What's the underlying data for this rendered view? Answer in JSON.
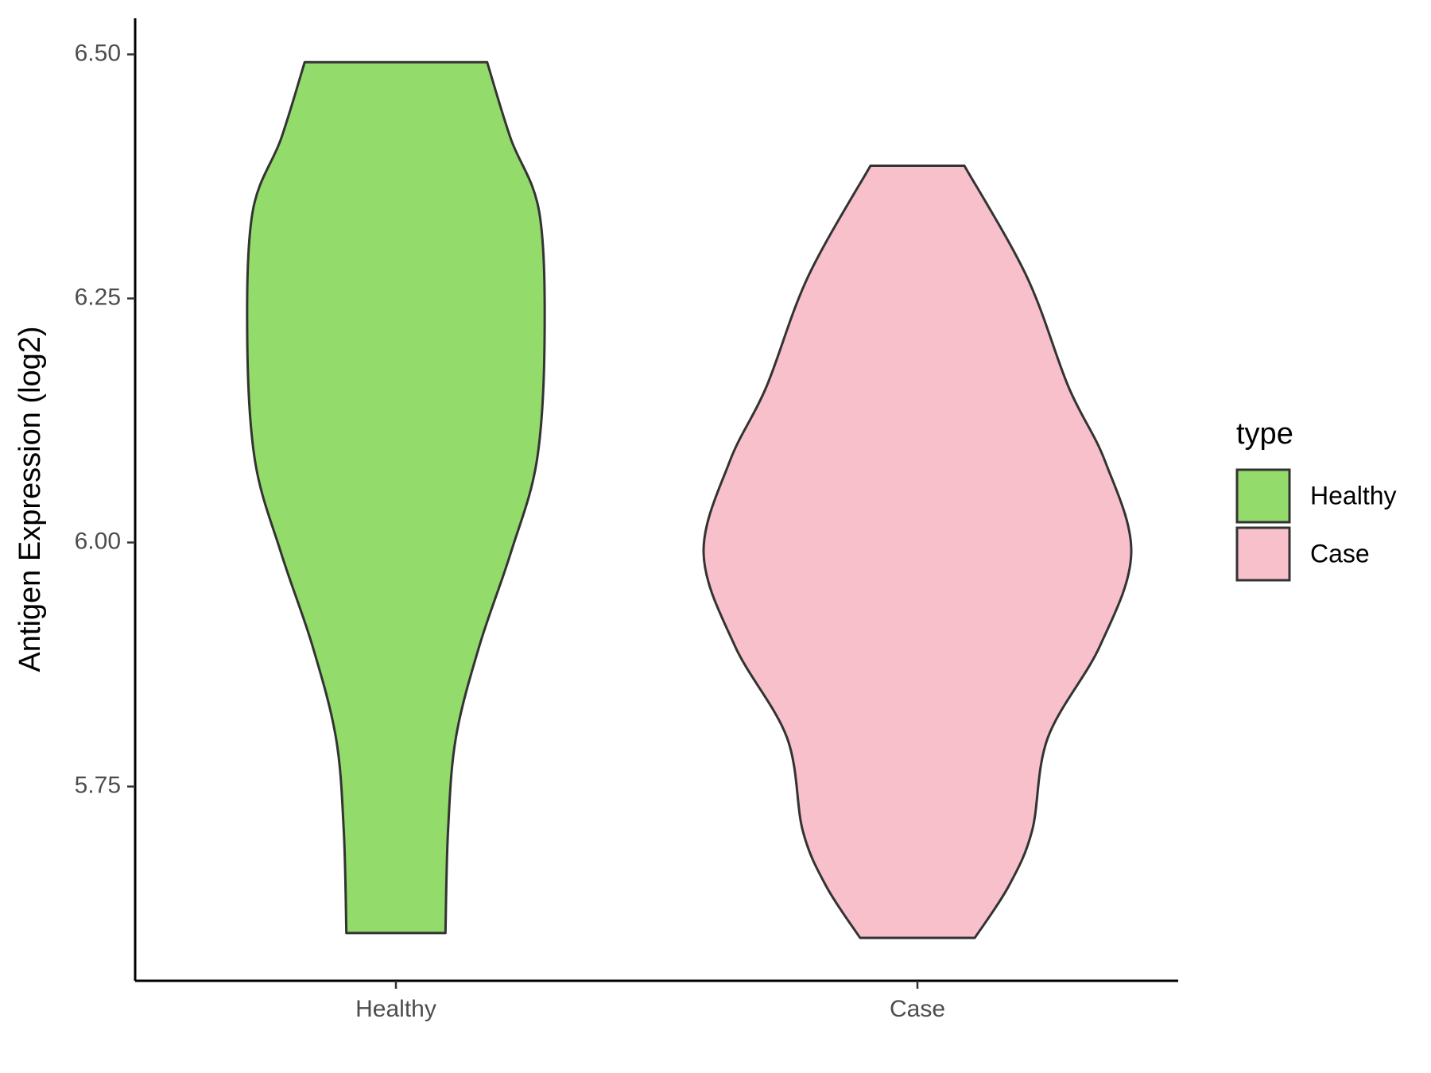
{
  "chart_data": {
    "type": "violin",
    "y_label": "Antigen Expression (log2)",
    "categories": [
      "Healthy",
      "Case"
    ],
    "legend_title": "type",
    "legend_position": "right",
    "series": [
      {
        "name": "Healthy",
        "color": "#93db6a",
        "y": [
          6.492,
          6.414,
          6.338,
          6.206,
          6.083,
          5.989,
          5.894,
          5.8,
          5.705,
          5.6
        ],
        "widths": [
          0.35,
          0.44,
          0.55,
          0.57,
          0.54,
          0.44,
          0.32,
          0.23,
          0.2,
          0.19
        ]
      },
      {
        "name": "Case",
        "color": "#f8c0cb",
        "y": [
          6.386,
          6.272,
          6.159,
          6.083,
          5.989,
          5.894,
          5.8,
          5.705,
          5.648,
          5.595
        ],
        "widths": [
          0.18,
          0.42,
          0.58,
          0.72,
          0.82,
          0.7,
          0.5,
          0.44,
          0.35,
          0.22
        ]
      }
    ],
    "ylim": [
      5.551,
      6.537
    ],
    "yticks": [
      {
        "value": 5.75,
        "label": "5.75"
      },
      {
        "value": 6,
        "label": "6.00"
      },
      {
        "value": 6.25,
        "label": "6.25"
      },
      {
        "value": 6.5,
        "label": "6.50"
      }
    ],
    "grid": false
  }
}
